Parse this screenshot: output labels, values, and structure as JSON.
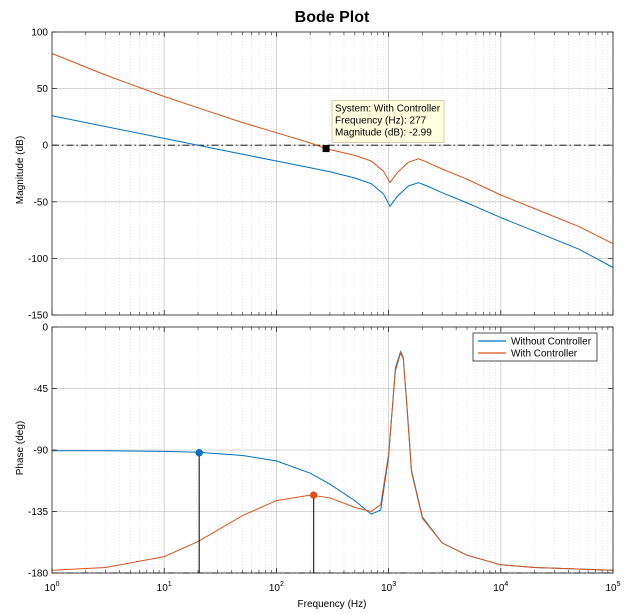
{
  "chart_data": {
    "type": "line",
    "title": "Bode Plot",
    "xlabel": "Frequency  (Hz)",
    "xscale": "log",
    "xlim": [
      1,
      100000
    ],
    "xticks": [
      {
        "base": "10",
        "exp": "0"
      },
      {
        "base": "10",
        "exp": "1"
      },
      {
        "base": "10",
        "exp": "2"
      },
      {
        "base": "10",
        "exp": "3"
      },
      {
        "base": "10",
        "exp": "4"
      },
      {
        "base": "10",
        "exp": "5"
      }
    ],
    "grid": true,
    "colors": {
      "without": "#0072bd",
      "with": "#d95319"
    },
    "magnitude": {
      "ylabel": "Magnitude (dB)",
      "ylim": [
        -150,
        100
      ],
      "yticks": [
        100,
        50,
        0,
        -50,
        -100,
        -150
      ],
      "reference_line": 0,
      "series": [
        {
          "key": "without",
          "x": [
            1,
            10,
            20,
            50,
            100,
            200,
            300,
            500,
            700,
            900,
            1030,
            1200,
            1500,
            1850,
            2200,
            3000,
            5000,
            10000,
            20000,
            50000,
            100000
          ],
          "y": [
            26,
            6,
            0,
            -8,
            -14,
            -20,
            -23.5,
            -29,
            -34,
            -43,
            -54,
            -45,
            -36,
            -33,
            -36,
            -42,
            -51,
            -64,
            -76,
            -92,
            -108
          ]
        },
        {
          "key": "with",
          "x": [
            1,
            3,
            10,
            20,
            50,
            100,
            200,
            277,
            500,
            700,
            900,
            1030,
            1200,
            1500,
            1850,
            2200,
            3000,
            5000,
            10000,
            20000,
            50000,
            100000
          ],
          "y": [
            81,
            62,
            43,
            33,
            20,
            11,
            2,
            -2.99,
            -9,
            -14,
            -23,
            -33,
            -24,
            -15,
            -12,
            -15,
            -21,
            -30,
            -44,
            -56,
            -72,
            -87
          ]
        }
      ],
      "datatip": {
        "x": 277,
        "y": -2.99,
        "lines": [
          "System: With Controller",
          "Frequency (Hz): 277",
          "Magnitude (dB): -2.99"
        ]
      }
    },
    "phase": {
      "ylabel": "Phase (deg)",
      "ylim": [
        -180,
        0
      ],
      "yticks": [
        0,
        -45,
        -90,
        -135,
        -180
      ],
      "reference_line": -180,
      "legend": {
        "position": "top-right",
        "entries": [
          "Without Controller",
          "With Controller"
        ]
      },
      "series": [
        {
          "key": "without",
          "x": [
            1,
            3,
            10,
            20,
            50,
            100,
            200,
            300,
            500,
            700,
            850,
            1000,
            1150,
            1280,
            1350,
            1450,
            1600,
            2000,
            3000,
            5000,
            10000,
            20000,
            100000
          ],
          "y": [
            -90.5,
            -90.6,
            -91,
            -91.7,
            -94,
            -98,
            -107,
            -115,
            -127,
            -137,
            -134,
            -95,
            -30,
            -18,
            -22,
            -55,
            -105,
            -139,
            -158,
            -167,
            -174,
            -176,
            -178
          ]
        },
        {
          "key": "with",
          "x": [
            1,
            3,
            10,
            20,
            50,
            100,
            200,
            300,
            500,
            700,
            850,
            1000,
            1150,
            1280,
            1350,
            1450,
            1600,
            2000,
            3000,
            5000,
            10000,
            20000,
            100000
          ],
          "y": [
            -178,
            -176,
            -168,
            -157,
            -138,
            -127,
            -123,
            -125,
            -132,
            -135,
            -130,
            -93,
            -32,
            -19,
            -23,
            -56,
            -106,
            -140,
            -158,
            -167,
            -174,
            -176,
            -178
          ]
        }
      ],
      "markers": [
        {
          "key": "without",
          "x": 20.5,
          "y": -92
        },
        {
          "key": "with",
          "x": 215,
          "y": -123
        }
      ]
    }
  }
}
